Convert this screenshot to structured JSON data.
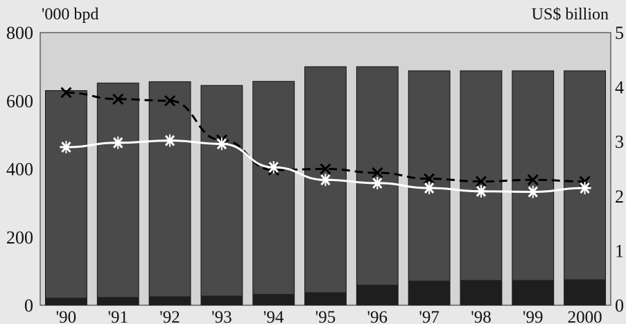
{
  "chart_data": {
    "type": "bar",
    "title": "",
    "y_left": {
      "label": "'000 bpd",
      "ylim": [
        0,
        800
      ],
      "ticks": [
        "0",
        "200",
        "400",
        "600",
        "800"
      ]
    },
    "y_right": {
      "label": "US$ billion",
      "ylim": [
        0,
        5
      ],
      "ticks": [
        "0",
        "1",
        "2",
        "3",
        "4",
        "5"
      ]
    },
    "categories": [
      "'90",
      "'91",
      "'92",
      "'93",
      "'94",
      "'95",
      "'96",
      "'97",
      "'98",
      "'99",
      "2000"
    ],
    "bars": [
      {
        "axis": "left",
        "color": "#4a4a4a",
        "values": [
          630,
          652,
          656,
          645,
          657,
          700,
          700,
          688,
          688,
          688,
          688
        ]
      },
      {
        "axis": "left",
        "color": "#1e1e1e",
        "values": [
          22,
          24,
          26,
          28,
          33,
          38,
          60,
          72,
          74,
          74,
          76
        ]
      }
    ],
    "lines": [
      {
        "axis": "right",
        "color": "#000000",
        "style": "dashed",
        "marker": "x",
        "values": [
          3.9,
          3.78,
          3.75,
          3.03,
          2.48,
          2.5,
          2.43,
          2.32,
          2.27,
          2.3,
          2.27
        ]
      },
      {
        "axis": "right",
        "color": "#ffffff",
        "style": "solid",
        "marker": "asterisk",
        "values": [
          2.9,
          2.98,
          3.02,
          2.96,
          2.53,
          2.3,
          2.24,
          2.15,
          2.09,
          2.08,
          2.15
        ]
      }
    ],
    "grid": false,
    "legend": "none"
  }
}
